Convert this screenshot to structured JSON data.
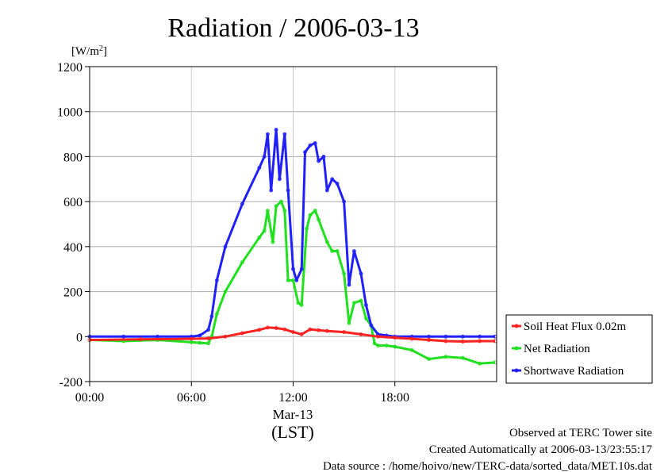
{
  "chart_data": {
    "type": "line",
    "title": "Radiation / 2006-03-13",
    "ylabel": "[W/m²]",
    "ylabel_parts": {
      "base": "[W/m",
      "sup": "2",
      "end": "]"
    },
    "xlabel": "(LST)",
    "date_label": "Mar-13",
    "ylim": [
      -200,
      1200
    ],
    "yticks": [
      -200,
      0,
      200,
      400,
      600,
      800,
      1000,
      1200
    ],
    "yticklabels": [
      "-200",
      "0",
      "200",
      "400",
      "600",
      "800",
      "1000",
      "1200"
    ],
    "xlim": [
      0,
      24
    ],
    "xticks": [
      0,
      6,
      12,
      18
    ],
    "xticklabels": [
      "00:00",
      "06:00",
      "12:00",
      "18:00"
    ],
    "grid": true,
    "legend_position": "right",
    "series": [
      {
        "name": "Soil Heat Flux 0.02m",
        "color": "#ff2020",
        "x": [
          0,
          3,
          6,
          7,
          8,
          9,
          10,
          10.5,
          11,
          11.5,
          12,
          12.5,
          13,
          13.5,
          14,
          15,
          16,
          17,
          18,
          19,
          20,
          21,
          22,
          23,
          23.9
        ],
        "values": [
          -15,
          -12,
          -10,
          -8,
          0,
          15,
          30,
          40,
          38,
          32,
          20,
          10,
          32,
          28,
          25,
          20,
          10,
          0,
          -5,
          -10,
          -15,
          -20,
          -22,
          -20,
          -20
        ]
      },
      {
        "name": "Net Radiation",
        "color": "#20e020",
        "x": [
          0,
          2,
          4,
          6,
          6.5,
          7,
          7.2,
          7.5,
          8,
          9,
          10,
          10.3,
          10.5,
          10.8,
          11,
          11.3,
          11.5,
          11.7,
          12,
          12.3,
          12.5,
          12.8,
          13,
          13.3,
          13.5,
          14,
          14.3,
          14.6,
          15,
          15.3,
          15.6,
          16,
          16.3,
          16.6,
          16.8,
          17,
          17.5,
          18,
          19,
          20,
          21,
          22,
          23,
          23.9
        ],
        "values": [
          -15,
          -20,
          -15,
          -25,
          -28,
          -30,
          0,
          100,
          200,
          330,
          440,
          470,
          560,
          420,
          580,
          600,
          560,
          250,
          250,
          150,
          140,
          480,
          540,
          560,
          520,
          420,
          380,
          380,
          280,
          60,
          150,
          160,
          80,
          50,
          -30,
          -40,
          -40,
          -45,
          -60,
          -100,
          -90,
          -95,
          -120,
          -115
        ]
      },
      {
        "name": "Shortwave Radiation",
        "color": "#2020ff",
        "x": [
          0,
          2,
          4,
          6,
          6.5,
          7,
          7.2,
          7.5,
          8,
          9,
          10,
          10.3,
          10.5,
          10.7,
          11,
          11.2,
          11.5,
          11.7,
          12,
          12.2,
          12.5,
          12.7,
          13,
          13.3,
          13.5,
          13.8,
          14,
          14.3,
          14.6,
          15,
          15.3,
          15.6,
          16,
          16.3,
          16.6,
          17,
          17.5,
          18,
          19,
          20,
          21,
          22,
          23,
          23.9
        ],
        "values": [
          0,
          0,
          0,
          0,
          5,
          30,
          90,
          250,
          400,
          590,
          750,
          800,
          900,
          650,
          920,
          700,
          900,
          650,
          300,
          250,
          300,
          820,
          850,
          860,
          780,
          800,
          650,
          700,
          680,
          600,
          230,
          380,
          280,
          140,
          50,
          10,
          5,
          0,
          0,
          0,
          0,
          0,
          0,
          0
        ]
      }
    ]
  },
  "footer": {
    "line1": "Observed at TERC Tower site",
    "line2": "Created Automatically at 2006-03-13/23:55:17",
    "line3": "Data source : /home/hoivo/new/TERC-data/sorted_data/MET.10s.dat"
  }
}
